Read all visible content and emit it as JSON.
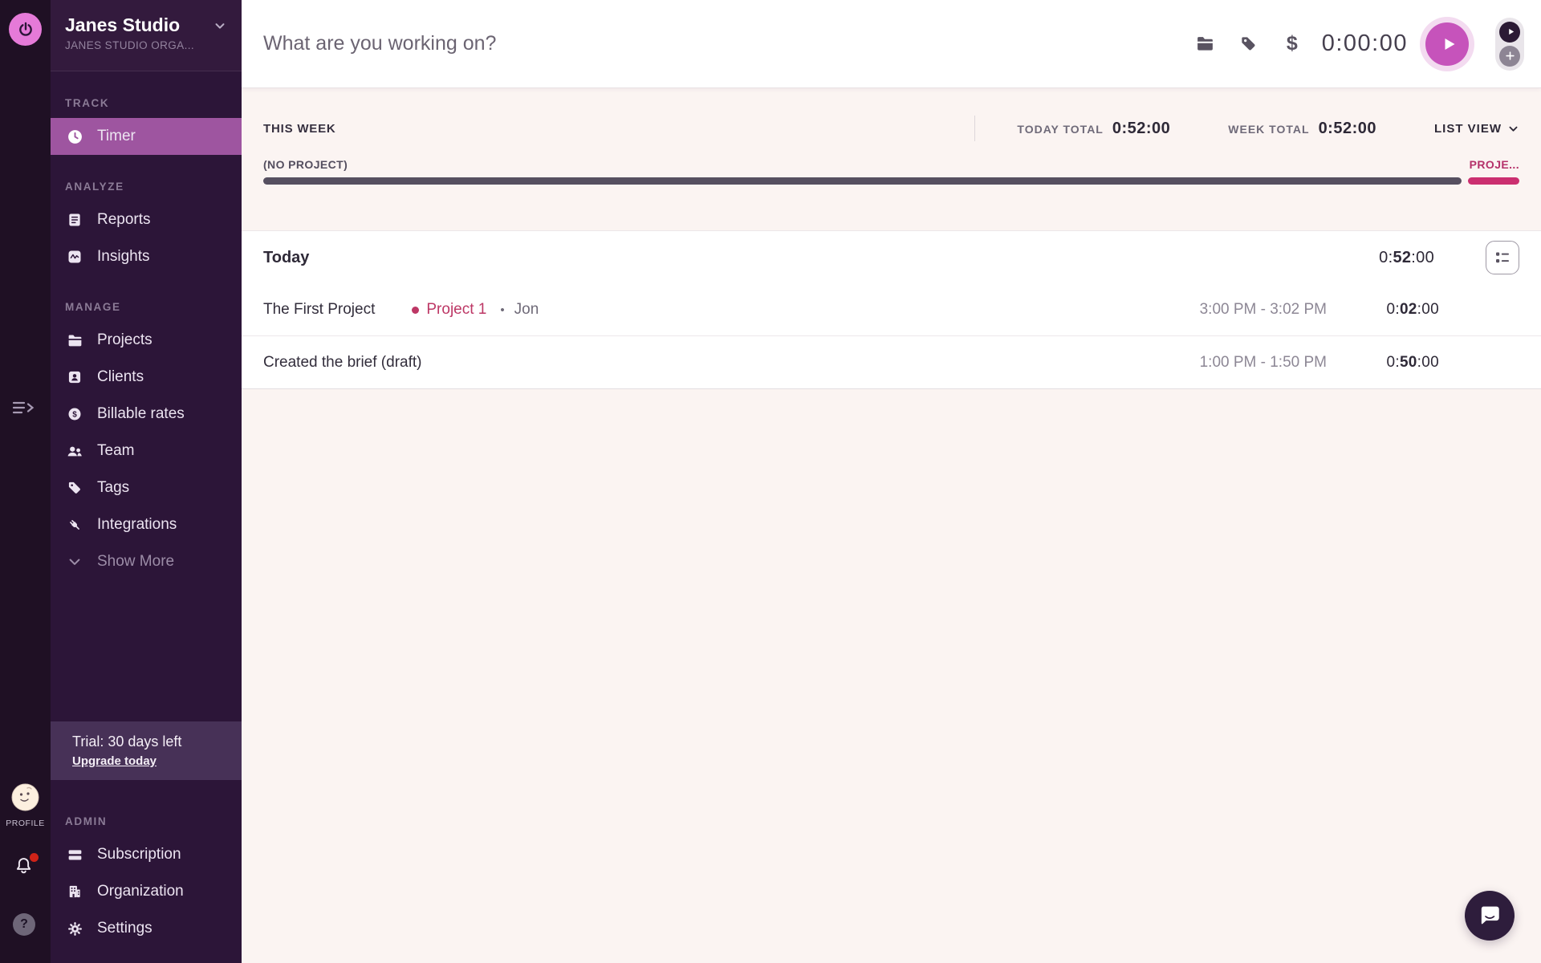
{
  "colors": {
    "rail_bg": "#1f1024",
    "sidebar_bg": "#2c1538",
    "active_item_purple": "#9e55a0",
    "brand_pink_circle": "#e57ad8",
    "start_button_magenta": "#c653bb",
    "project_pink": "#bd3765",
    "bar_dark": "#564f60",
    "bar_pink": "#cb2f70",
    "trial_box_bg": "#473157",
    "page_bg": "#fbf4f2",
    "card_bg": "#ffffff",
    "text_dark": "#2e2937",
    "text_gray": "#8d8795",
    "notification_red": "#cf2318"
  },
  "rail": {
    "brand_icon": "power-icon",
    "collapse_icon": "collapse-sidebar-icon",
    "profile_label": "PROFILE",
    "notifications_icon": "bell-icon",
    "help_icon": "help-icon",
    "help_glyph": "?"
  },
  "workspace": {
    "name": "Janes Studio",
    "organization": "JANES STUDIO ORGA..."
  },
  "sidebar": {
    "sections": [
      {
        "label": "TRACK",
        "items": [
          {
            "label": "Timer",
            "icon": "clock-icon",
            "active": true
          }
        ]
      },
      {
        "label": "ANALYZE",
        "items": [
          {
            "label": "Reports",
            "icon": "reports-icon"
          },
          {
            "label": "Insights",
            "icon": "insights-icon"
          }
        ]
      },
      {
        "label": "MANAGE",
        "items": [
          {
            "label": "Projects",
            "icon": "folder-icon"
          },
          {
            "label": "Clients",
            "icon": "contact-card-icon"
          },
          {
            "label": "Billable rates",
            "icon": "dollar-circle-icon"
          },
          {
            "label": "Team",
            "icon": "team-icon"
          },
          {
            "label": "Tags",
            "icon": "tag-icon"
          },
          {
            "label": "Integrations",
            "icon": "plug-icon"
          },
          {
            "label": "Show More",
            "icon": "chevron-down-icon",
            "muted": true
          }
        ]
      },
      {
        "label": "ADMIN",
        "items": [
          {
            "label": "Subscription",
            "icon": "credit-card-icon"
          },
          {
            "label": "Organization",
            "icon": "building-icon"
          },
          {
            "label": "Settings",
            "icon": "gear-icon"
          }
        ]
      }
    ],
    "trial": {
      "text": "Trial: 30 days left",
      "link": "Upgrade today"
    }
  },
  "timer_bar": {
    "placeholder": "What are you working on?",
    "billable_symbol": "$",
    "duration": "0:00:00"
  },
  "week": {
    "title": "THIS WEEK",
    "today_total_label": "TODAY TOTAL",
    "today_total": "0:52:00",
    "week_total_label": "WEEK TOTAL",
    "week_total": "0:52:00",
    "view_label": "LIST VIEW",
    "bar": {
      "no_project_label": "(NO PROJECT)",
      "project_label": "PROJE...",
      "no_project_pct": 95.4,
      "project_pct": 4.1
    }
  },
  "day": {
    "title": "Today",
    "total": {
      "pre": "0:",
      "emph": "52",
      "post": ":00"
    },
    "entries": [
      {
        "description": "The First Project",
        "project": "Project 1",
        "separator": "•",
        "member": "Jon",
        "time_range": "3:00 PM - 3:02 PM",
        "duration": {
          "pre": "0:",
          "emph": "02",
          "post": ":00"
        }
      },
      {
        "description": "Created the brief (draft)",
        "time_range": "1:00 PM - 1:50 PM",
        "duration": {
          "pre": "0:",
          "emph": "50",
          "post": ":00"
        }
      }
    ]
  }
}
